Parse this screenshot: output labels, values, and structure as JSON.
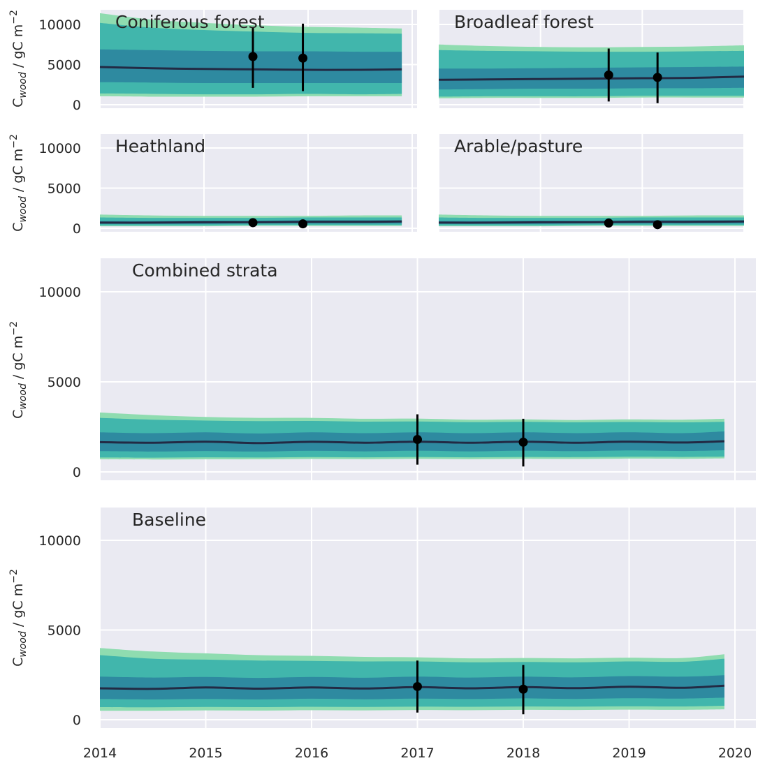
{
  "chart_data": [
    {
      "type": "area",
      "panel_title": "Coniferous forest",
      "ylabel": "C_wood / gC m^-2",
      "xlim": [
        2014,
        2017
      ],
      "ylim": [
        0,
        12000
      ],
      "yticks": [
        0,
        5000,
        10000
      ],
      "grid": true,
      "x": [
        2014.0,
        2014.5,
        2015.0,
        2015.5,
        2016.0,
        2016.5,
        2016.9
      ],
      "series": [
        {
          "role": "median",
          "values": [
            4700,
            4550,
            4450,
            4400,
            4350,
            4350,
            4400
          ]
        },
        {
          "role": "band_50",
          "lower": [
            2800,
            2750,
            2700,
            2700,
            2700,
            2700,
            2700
          ],
          "upper": [
            6900,
            6800,
            6700,
            6650,
            6650,
            6600,
            6600
          ]
        },
        {
          "role": "band_75",
          "lower": [
            1400,
            1350,
            1300,
            1300,
            1350,
            1300,
            1350
          ],
          "upper": [
            10200,
            9600,
            9300,
            9100,
            8950,
            8900,
            8850
          ]
        },
        {
          "role": "band_95",
          "lower": [
            1050,
            1000,
            1000,
            1000,
            1050,
            1050,
            1050
          ],
          "upper": [
            11400,
            10600,
            10200,
            9900,
            9700,
            9600,
            9500
          ]
        }
      ],
      "observations": [
        {
          "x": 2015.47,
          "y": 6000,
          "err_low": 2100,
          "err_high": 9700
        },
        {
          "x": 2015.95,
          "y": 5800,
          "err_low": 1700,
          "err_high": 10100
        }
      ]
    },
    {
      "type": "area",
      "panel_title": "Broadleaf forest",
      "ylabel": "",
      "xlim": [
        2017,
        2020
      ],
      "ylim": [
        0,
        12000
      ],
      "yticks": [
        0,
        5000,
        10000
      ],
      "grid": true,
      "x": [
        2017.0,
        2017.5,
        2018.0,
        2018.5,
        2019.0,
        2019.5,
        2020.0
      ],
      "series": [
        {
          "role": "median",
          "values": [
            3100,
            3150,
            3200,
            3250,
            3300,
            3350,
            3500
          ]
        },
        {
          "role": "band_50",
          "lower": [
            1900,
            1950,
            2000,
            2000,
            2050,
            2050,
            2100
          ],
          "upper": [
            4500,
            4500,
            4550,
            4600,
            4650,
            4700,
            4750
          ]
        },
        {
          "role": "band_75",
          "lower": [
            1000,
            1050,
            1050,
            1050,
            1100,
            1100,
            1100
          ],
          "upper": [
            6800,
            6700,
            6650,
            6600,
            6600,
            6650,
            6700
          ]
        },
        {
          "role": "band_95",
          "lower": [
            800,
            850,
            850,
            850,
            900,
            900,
            900
          ],
          "upper": [
            7500,
            7300,
            7200,
            7150,
            7200,
            7250,
            7400
          ]
        }
      ],
      "observations": [
        {
          "x": 2018.67,
          "y": 3700,
          "err_low": 400,
          "err_high": 7000
        },
        {
          "x": 2019.15,
          "y": 3400,
          "err_low": 200,
          "err_high": 6500
        }
      ]
    },
    {
      "type": "area",
      "panel_title": "Heathland",
      "ylabel": "C_wood / gC m^-2",
      "xlim": [
        2014,
        2017
      ],
      "ylim": [
        0,
        12000
      ],
      "yticks": [
        0,
        5000,
        10000
      ],
      "grid": true,
      "x": [
        2014.0,
        2014.5,
        2015.0,
        2015.5,
        2016.0,
        2016.5,
        2016.9
      ],
      "series": [
        {
          "role": "median",
          "values": [
            700,
            700,
            750,
            750,
            800,
            800,
            850
          ]
        },
        {
          "role": "band_50",
          "lower": [
            550,
            550,
            550,
            600,
            600,
            600,
            600
          ],
          "upper": [
            900,
            900,
            950,
            950,
            1000,
            1000,
            1000
          ]
        },
        {
          "role": "band_75",
          "lower": [
            350,
            350,
            350,
            400,
            400,
            400,
            400
          ],
          "upper": [
            1350,
            1300,
            1300,
            1300,
            1350,
            1350,
            1350
          ]
        },
        {
          "role": "band_95",
          "lower": [
            250,
            250,
            250,
            300,
            300,
            300,
            300
          ],
          "upper": [
            1700,
            1600,
            1550,
            1550,
            1550,
            1600,
            1600
          ]
        }
      ],
      "observations": [
        {
          "x": 2015.47,
          "y": 700,
          "err_low": 300,
          "err_high": 1200
        },
        {
          "x": 2015.95,
          "y": 550,
          "err_low": 450,
          "err_high": 650
        }
      ]
    },
    {
      "type": "area",
      "panel_title": "Arable/pasture",
      "ylabel": "",
      "xlim": [
        2017,
        2020
      ],
      "ylim": [
        0,
        12000
      ],
      "yticks": [
        0,
        5000,
        10000
      ],
      "grid": true,
      "x": [
        2017.0,
        2017.5,
        2018.0,
        2018.5,
        2019.0,
        2019.5,
        2020.0
      ],
      "series": [
        {
          "role": "median",
          "values": [
            700,
            700,
            750,
            750,
            800,
            800,
            850
          ]
        },
        {
          "role": "band_50",
          "lower": [
            550,
            550,
            550,
            600,
            600,
            600,
            600
          ],
          "upper": [
            900,
            900,
            950,
            950,
            1000,
            1000,
            1000
          ]
        },
        {
          "role": "band_75",
          "lower": [
            350,
            350,
            350,
            400,
            400,
            400,
            400
          ],
          "upper": [
            1350,
            1300,
            1300,
            1300,
            1350,
            1350,
            1350
          ]
        },
        {
          "role": "band_95",
          "lower": [
            250,
            250,
            250,
            300,
            300,
            300,
            300
          ],
          "upper": [
            1700,
            1600,
            1550,
            1550,
            1550,
            1600,
            1600
          ]
        }
      ],
      "observations": [
        {
          "x": 2018.67,
          "y": 650,
          "err_low": 250,
          "err_high": 1150
        },
        {
          "x": 2019.15,
          "y": 450,
          "err_low": 350,
          "err_high": 550
        }
      ]
    },
    {
      "type": "area",
      "panel_title": "Combined strata",
      "ylabel": "C_wood / gC m^-2",
      "xlim": [
        2014,
        2020.2
      ],
      "ylim": [
        -500,
        12000
      ],
      "yticks": [
        0,
        5000,
        10000
      ],
      "grid": true,
      "x": [
        2014.0,
        2014.5,
        2015.0,
        2015.5,
        2016.0,
        2016.5,
        2017.0,
        2017.5,
        2018.0,
        2018.5,
        2019.0,
        2019.5,
        2019.9
      ],
      "series": [
        {
          "role": "median",
          "values": [
            1650,
            1620,
            1680,
            1600,
            1670,
            1620,
            1680,
            1620,
            1680,
            1620,
            1680,
            1630,
            1700
          ]
        },
        {
          "role": "band_50",
          "lower": [
            1150,
            1130,
            1160,
            1130,
            1170,
            1140,
            1180,
            1140,
            1180,
            1150,
            1190,
            1160,
            1200
          ]
        },
        {
          "role": "band_50_upper",
          "values": [
            2200,
            2150,
            2200,
            2130,
            2200,
            2150,
            2200,
            2150,
            2200,
            2150,
            2200,
            2150,
            2250
          ]
        },
        {
          "role": "band_75",
          "lower": [
            800,
            790,
            810,
            800,
            820,
            810,
            830,
            810,
            830,
            820,
            840,
            830,
            850
          ],
          "upper": [
            3000,
            2900,
            2850,
            2820,
            2830,
            2790,
            2800,
            2760,
            2780,
            2750,
            2770,
            2750,
            2780
          ]
        },
        {
          "role": "band_95",
          "lower": [
            700,
            690,
            700,
            700,
            720,
            710,
            730,
            710,
            730,
            720,
            740,
            730,
            750
          ],
          "upper": [
            3300,
            3150,
            3050,
            3000,
            3000,
            2950,
            2960,
            2900,
            2920,
            2880,
            2920,
            2900,
            2950
          ]
        }
      ],
      "observations": [
        {
          "x": 2017.0,
          "y": 1800,
          "err_low": 400,
          "err_high": 3200
        },
        {
          "x": 2018.0,
          "y": 1650,
          "err_low": 300,
          "err_high": 2950
        }
      ]
    },
    {
      "type": "area",
      "panel_title": "Baseline",
      "ylabel": "C_wood / gC m^-2",
      "xlim": [
        2014,
        2020.2
      ],
      "ylim": [
        -500,
        12000
      ],
      "yticks": [
        0,
        5000,
        10000
      ],
      "xticks": [
        "2014",
        "2015",
        "2016",
        "2017",
        "2018",
        "2019",
        "2020"
      ],
      "grid": true,
      "x": [
        2014.0,
        2014.5,
        2015.0,
        2015.5,
        2016.0,
        2016.5,
        2017.0,
        2017.5,
        2018.0,
        2018.5,
        2019.0,
        2019.5,
        2019.9
      ],
      "series": [
        {
          "role": "median",
          "values": [
            1750,
            1720,
            1800,
            1730,
            1800,
            1740,
            1820,
            1750,
            1820,
            1760,
            1840,
            1780,
            1900
          ]
        },
        {
          "role": "band_50",
          "lower": [
            1150,
            1130,
            1160,
            1130,
            1170,
            1140,
            1180,
            1150,
            1190,
            1160,
            1200,
            1180,
            1230
          ],
          "upper": [
            2400,
            2350,
            2380,
            2330,
            2380,
            2340,
            2400,
            2350,
            2400,
            2360,
            2430,
            2400,
            2480
          ]
        },
        {
          "role": "band_75",
          "lower": [
            700,
            690,
            710,
            700,
            720,
            710,
            730,
            720,
            740,
            730,
            750,
            740,
            780
          ],
          "upper": [
            3600,
            3400,
            3350,
            3300,
            3280,
            3250,
            3250,
            3200,
            3220,
            3200,
            3250,
            3230,
            3400
          ]
        },
        {
          "role": "band_95",
          "lower": [
            500,
            500,
            520,
            510,
            530,
            520,
            540,
            530,
            550,
            540,
            560,
            550,
            580
          ],
          "upper": [
            4000,
            3800,
            3700,
            3600,
            3560,
            3500,
            3480,
            3420,
            3440,
            3420,
            3460,
            3440,
            3650
          ]
        }
      ],
      "observations": [
        {
          "x": 2017.0,
          "y": 1850,
          "err_low": 400,
          "err_high": 3300
        },
        {
          "x": 2018.0,
          "y": 1700,
          "err_low": 300,
          "err_high": 3050
        }
      ]
    }
  ],
  "colors": {
    "background": "#eaeaf2",
    "grid": "#ffffff",
    "band_95": "#8fdcb0",
    "band_75": "#41b6ac",
    "band_50": "#2e8aa0",
    "median": "#222a44",
    "observation": "#000000",
    "text": "#262626"
  }
}
